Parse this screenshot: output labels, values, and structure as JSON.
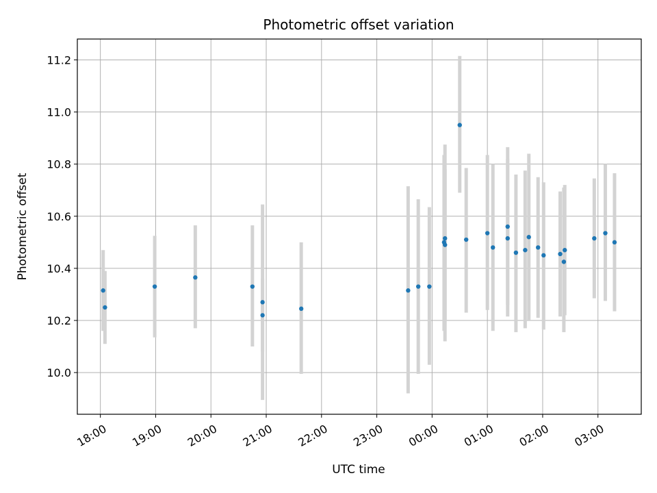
{
  "chart_data": {
    "type": "scatter",
    "title": "Photometric offset variation",
    "xlabel": "UTC time",
    "ylabel": "Photometric offset",
    "x_unit": "time of day (UTC), hours after 18:00 on first night",
    "xlim_times": [
      "17:35",
      "03:47"
    ],
    "ylim": [
      9.84,
      11.28
    ],
    "x_ticks": [
      "18:00",
      "19:00",
      "20:00",
      "21:00",
      "22:00",
      "23:00",
      "00:00",
      "01:00",
      "02:00",
      "03:00"
    ],
    "y_ticks": [
      "10.0",
      "10.2",
      "10.4",
      "10.6",
      "10.8",
      "11.0",
      "11.2"
    ],
    "grid": true,
    "point_color": "#1f77b4",
    "errorbar_color": "#d3d3d3",
    "points": [
      {
        "t": "18:03",
        "y": 10.315,
        "lo": 10.16,
        "hi": 10.47
      },
      {
        "t": "18:05",
        "y": 10.25,
        "lo": 10.11,
        "hi": 10.39
      },
      {
        "t": "18:59",
        "y": 10.33,
        "lo": 10.135,
        "hi": 10.525
      },
      {
        "t": "19:43",
        "y": 10.365,
        "lo": 10.17,
        "hi": 10.565
      },
      {
        "t": "20:45",
        "y": 10.33,
        "lo": 10.1,
        "hi": 10.565
      },
      {
        "t": "20:56",
        "y": 10.27,
        "lo": 9.895,
        "hi": 10.645
      },
      {
        "t": "20:56",
        "y": 10.22,
        "lo": 10.08,
        "hi": 10.36
      },
      {
        "t": "21:38",
        "y": 10.245,
        "lo": 9.995,
        "hi": 10.5
      },
      {
        "t": "23:34",
        "y": 10.315,
        "lo": 9.92,
        "hi": 10.715
      },
      {
        "t": "23:45",
        "y": 10.33,
        "lo": 9.995,
        "hi": 10.665
      },
      {
        "t": "23:57",
        "y": 10.33,
        "lo": 10.03,
        "hi": 10.635
      },
      {
        "t": "00:13",
        "y": 10.5,
        "lo": 10.16,
        "hi": 10.835
      },
      {
        "t": "00:14",
        "y": 10.515,
        "lo": 10.12,
        "hi": 10.875
      },
      {
        "t": "00:14",
        "y": 10.49,
        "lo": 10.2,
        "hi": 10.78
      },
      {
        "t": "00:30",
        "y": 10.95,
        "lo": 10.69,
        "hi": 11.215
      },
      {
        "t": "00:37",
        "y": 10.51,
        "lo": 10.23,
        "hi": 10.785
      },
      {
        "t": "01:00",
        "y": 10.535,
        "lo": 10.24,
        "hi": 10.835
      },
      {
        "t": "01:06",
        "y": 10.48,
        "lo": 10.16,
        "hi": 10.8
      },
      {
        "t": "01:22",
        "y": 10.56,
        "lo": 10.26,
        "hi": 10.865
      },
      {
        "t": "01:22",
        "y": 10.515,
        "lo": 10.215,
        "hi": 10.82
      },
      {
        "t": "01:31",
        "y": 10.46,
        "lo": 10.155,
        "hi": 10.76
      },
      {
        "t": "01:41",
        "y": 10.47,
        "lo": 10.17,
        "hi": 10.775
      },
      {
        "t": "01:45",
        "y": 10.52,
        "lo": 10.2,
        "hi": 10.84
      },
      {
        "t": "01:55",
        "y": 10.48,
        "lo": 10.21,
        "hi": 10.75
      },
      {
        "t": "02:01",
        "y": 10.45,
        "lo": 10.165,
        "hi": 10.73
      },
      {
        "t": "02:19",
        "y": 10.455,
        "lo": 10.215,
        "hi": 10.695
      },
      {
        "t": "02:23",
        "y": 10.425,
        "lo": 10.155,
        "hi": 10.71
      },
      {
        "t": "02:24",
        "y": 10.47,
        "lo": 10.22,
        "hi": 10.72
      },
      {
        "t": "02:56",
        "y": 10.515,
        "lo": 10.285,
        "hi": 10.745
      },
      {
        "t": "03:08",
        "y": 10.535,
        "lo": 10.275,
        "hi": 10.8
      },
      {
        "t": "03:18",
        "y": 10.5,
        "lo": 10.235,
        "hi": 10.765
      }
    ]
  }
}
